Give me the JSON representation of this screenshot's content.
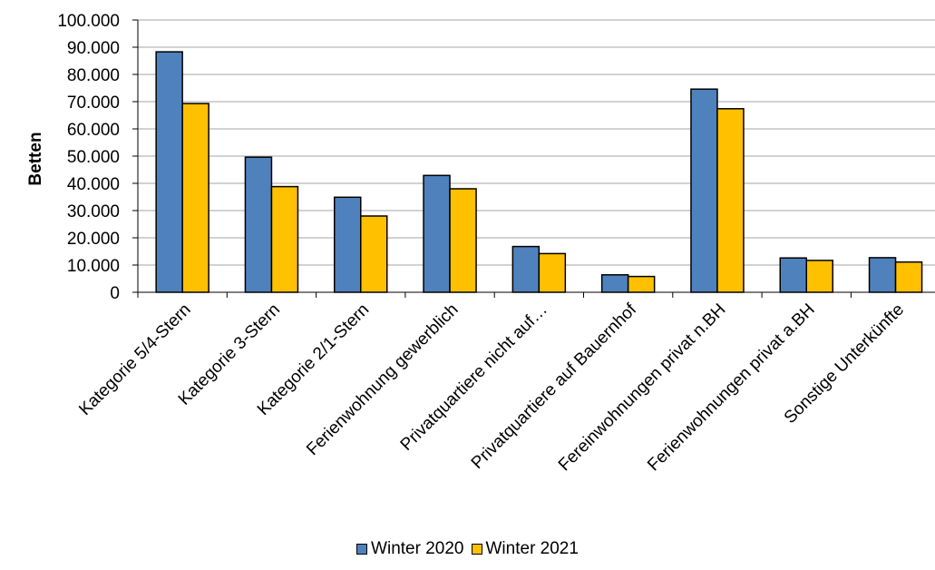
{
  "chart_data": {
    "type": "bar",
    "title": "",
    "xlabel": "",
    "ylabel": "Betten",
    "ylim": [
      0,
      100000
    ],
    "yticks": [
      "0",
      "10.000",
      "20.000",
      "30.000",
      "40.000",
      "50.000",
      "60.000",
      "70.000",
      "80.000",
      "90.000",
      "100.000"
    ],
    "grid": true,
    "legend_position": "bottom",
    "categories": [
      "Kategorie 5/4-Stern",
      "Kategorie 3-Stern",
      "Kategorie 2/1-Stern",
      "Ferienwohnung gewerblich",
      "Privatquartiere nicht auf…",
      "Privatquartiere auf Bauernhof",
      "Fereinwohnungen privat n.BH",
      "Ferienwohnungen privat a.BH",
      "Sonstige Unterkünfte"
    ],
    "series": [
      {
        "name": "Winter 2020",
        "color": "#4F81BD",
        "values": [
          88300,
          49600,
          34900,
          42900,
          16800,
          6400,
          74600,
          12600,
          12700
        ]
      },
      {
        "name": "Winter 2021",
        "color": "#FFC000",
        "values": [
          69300,
          38800,
          28000,
          38000,
          14200,
          5800,
          67400,
          11700,
          11100
        ]
      }
    ]
  }
}
